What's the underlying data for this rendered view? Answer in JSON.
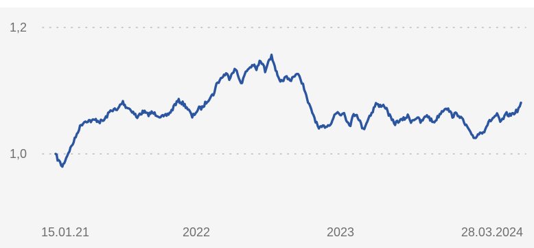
{
  "chart_data": {
    "type": "line",
    "title": "",
    "xlabel": "",
    "ylabel": "",
    "grid": "horizontal dotted",
    "legend": "none",
    "colors": {
      "line": "#2c55a0",
      "plot_background": "#f5f5f5",
      "label": "#6f6f6f",
      "grid": "#b9b9b9"
    },
    "x_tick_labels": [
      "15.01.21",
      "2022",
      "2023",
      "28.03.2024"
    ],
    "y_tick_labels": [
      "1,0",
      "1,2"
    ],
    "y_ticks": [
      1.0,
      1.2
    ],
    "ylim": [
      0.9,
      1.2
    ],
    "xlim": [
      "2021-01-15",
      "2024-03-28"
    ],
    "series": [
      {
        "points": [
          [
            "2021-01-15",
            1.0
          ],
          [
            "2021-01-20",
            0.992
          ],
          [
            "2021-01-26",
            0.986
          ],
          [
            "2021-02-01",
            0.98
          ],
          [
            "2021-02-08",
            0.99
          ],
          [
            "2021-02-16",
            1.002
          ],
          [
            "2021-02-24",
            1.012
          ],
          [
            "2021-03-04",
            1.023
          ],
          [
            "2021-03-12",
            1.036
          ],
          [
            "2021-03-20",
            1.046
          ],
          [
            "2021-03-28",
            1.051
          ],
          [
            "2021-04-06",
            1.053
          ],
          [
            "2021-04-16",
            1.052
          ],
          [
            "2021-04-26",
            1.054
          ],
          [
            "2021-05-06",
            1.051
          ],
          [
            "2021-05-16",
            1.053
          ],
          [
            "2021-05-24",
            1.06
          ],
          [
            "2021-06-02",
            1.068
          ],
          [
            "2021-06-10",
            1.071
          ],
          [
            "2021-06-18",
            1.068
          ],
          [
            "2021-06-26",
            1.077
          ],
          [
            "2021-07-03",
            1.082
          ],
          [
            "2021-07-10",
            1.075
          ],
          [
            "2021-07-18",
            1.072
          ],
          [
            "2021-07-26",
            1.068
          ],
          [
            "2021-08-03",
            1.062
          ],
          [
            "2021-08-08",
            1.056
          ],
          [
            "2021-08-14",
            1.063
          ],
          [
            "2021-08-24",
            1.067
          ],
          [
            "2021-09-03",
            1.062
          ],
          [
            "2021-09-13",
            1.065
          ],
          [
            "2021-09-23",
            1.063
          ],
          [
            "2021-10-03",
            1.06
          ],
          [
            "2021-10-13",
            1.058
          ],
          [
            "2021-10-23",
            1.062
          ],
          [
            "2021-11-02",
            1.068
          ],
          [
            "2021-11-10",
            1.078
          ],
          [
            "2021-11-20",
            1.084
          ],
          [
            "2021-11-30",
            1.08
          ],
          [
            "2021-12-10",
            1.074
          ],
          [
            "2021-12-18",
            1.066
          ],
          [
            "2021-12-24",
            1.058
          ],
          [
            "2022-01-02",
            1.066
          ],
          [
            "2022-01-10",
            1.072
          ],
          [
            "2022-01-18",
            1.073
          ],
          [
            "2022-01-28",
            1.082
          ],
          [
            "2022-02-07",
            1.09
          ],
          [
            "2022-02-15",
            1.094
          ],
          [
            "2022-02-23",
            1.11
          ],
          [
            "2022-03-03",
            1.117
          ],
          [
            "2022-03-11",
            1.123
          ],
          [
            "2022-03-19",
            1.127
          ],
          [
            "2022-03-27",
            1.12
          ],
          [
            "2022-04-04",
            1.13
          ],
          [
            "2022-04-12",
            1.134
          ],
          [
            "2022-04-20",
            1.12
          ],
          [
            "2022-04-28",
            1.112
          ],
          [
            "2022-05-04",
            1.124
          ],
          [
            "2022-05-10",
            1.132
          ],
          [
            "2022-05-18",
            1.137
          ],
          [
            "2022-05-26",
            1.141
          ],
          [
            "2022-06-03",
            1.133
          ],
          [
            "2022-06-11",
            1.146
          ],
          [
            "2022-06-19",
            1.142
          ],
          [
            "2022-06-25",
            1.131
          ],
          [
            "2022-07-03",
            1.149
          ],
          [
            "2022-07-11",
            1.154
          ],
          [
            "2022-07-19",
            1.14
          ],
          [
            "2022-07-26",
            1.122
          ],
          [
            "2022-08-02",
            1.112
          ],
          [
            "2022-08-10",
            1.118
          ],
          [
            "2022-08-18",
            1.121
          ],
          [
            "2022-08-26",
            1.116
          ],
          [
            "2022-09-04",
            1.123
          ],
          [
            "2022-09-13",
            1.126
          ],
          [
            "2022-09-22",
            1.119
          ],
          [
            "2022-10-01",
            1.104
          ],
          [
            "2022-10-08",
            1.086
          ],
          [
            "2022-10-16",
            1.073
          ],
          [
            "2022-10-24",
            1.062
          ],
          [
            "2022-11-01",
            1.048
          ],
          [
            "2022-11-07",
            1.039
          ],
          [
            "2022-11-14",
            1.042
          ],
          [
            "2022-11-22",
            1.044
          ],
          [
            "2022-11-30",
            1.045
          ],
          [
            "2022-12-08",
            1.05
          ],
          [
            "2022-12-16",
            1.061
          ],
          [
            "2022-12-24",
            1.066
          ],
          [
            "2023-01-01",
            1.062
          ],
          [
            "2023-01-09",
            1.067
          ],
          [
            "2023-01-17",
            1.05
          ],
          [
            "2023-01-25",
            1.047
          ],
          [
            "2023-02-02",
            1.062
          ],
          [
            "2023-02-10",
            1.063
          ],
          [
            "2023-02-18",
            1.051
          ],
          [
            "2023-02-26",
            1.038
          ],
          [
            "2023-03-06",
            1.049
          ],
          [
            "2023-03-14",
            1.06
          ],
          [
            "2023-03-22",
            1.068
          ],
          [
            "2023-03-30",
            1.08
          ],
          [
            "2023-04-07",
            1.075
          ],
          [
            "2023-04-15",
            1.078
          ],
          [
            "2023-04-23",
            1.074
          ],
          [
            "2023-05-01",
            1.063
          ],
          [
            "2023-05-09",
            1.053
          ],
          [
            "2023-05-17",
            1.048
          ],
          [
            "2023-05-25",
            1.052
          ],
          [
            "2023-06-02",
            1.053
          ],
          [
            "2023-06-10",
            1.056
          ],
          [
            "2023-06-18",
            1.06
          ],
          [
            "2023-06-26",
            1.052
          ],
          [
            "2023-07-04",
            1.055
          ],
          [
            "2023-07-12",
            1.058
          ],
          [
            "2023-07-20",
            1.05
          ],
          [
            "2023-07-28",
            1.055
          ],
          [
            "2023-08-05",
            1.062
          ],
          [
            "2023-08-13",
            1.055
          ],
          [
            "2023-08-21",
            1.05
          ],
          [
            "2023-08-29",
            1.055
          ],
          [
            "2023-09-06",
            1.063
          ],
          [
            "2023-09-14",
            1.069
          ],
          [
            "2023-09-22",
            1.074
          ],
          [
            "2023-09-30",
            1.068
          ],
          [
            "2023-10-08",
            1.06
          ],
          [
            "2023-10-16",
            1.063
          ],
          [
            "2023-10-24",
            1.062
          ],
          [
            "2023-11-01",
            1.055
          ],
          [
            "2023-11-09",
            1.046
          ],
          [
            "2023-11-17",
            1.04
          ],
          [
            "2023-11-25",
            1.028
          ],
          [
            "2023-12-03",
            1.025
          ],
          [
            "2023-12-11",
            1.031
          ],
          [
            "2023-12-19",
            1.034
          ],
          [
            "2023-12-27",
            1.037
          ],
          [
            "2024-01-04",
            1.047
          ],
          [
            "2024-01-12",
            1.053
          ],
          [
            "2024-01-20",
            1.058
          ],
          [
            "2024-01-28",
            1.062
          ],
          [
            "2024-02-05",
            1.05
          ],
          [
            "2024-02-13",
            1.056
          ],
          [
            "2024-02-21",
            1.063
          ],
          [
            "2024-02-29",
            1.061
          ],
          [
            "2024-03-08",
            1.064
          ],
          [
            "2024-03-16",
            1.067
          ],
          [
            "2024-03-22",
            1.071
          ],
          [
            "2024-03-28",
            1.081
          ]
        ]
      }
    ]
  }
}
